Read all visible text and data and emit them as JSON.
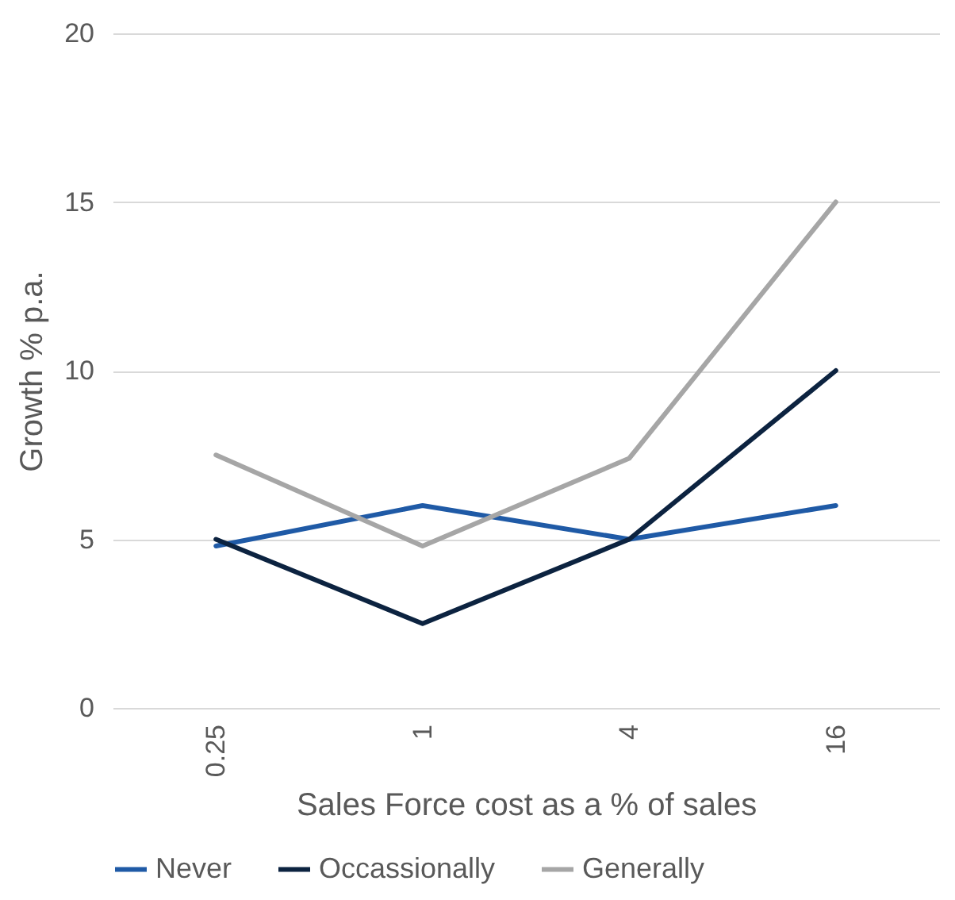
{
  "chart_data": {
    "type": "line",
    "xlabel": "Sales Force cost as a % of sales",
    "ylabel": "Growth % p.a.",
    "categories": [
      "0.25",
      "1",
      "4",
      "16"
    ],
    "series": [
      {
        "name": "Never",
        "color": "#1f5aa6",
        "values": [
          4.8,
          6.0,
          5.0,
          6.0
        ]
      },
      {
        "name": "Occassionally",
        "color": "#0c2340",
        "values": [
          5.0,
          2.5,
          5.0,
          10.0
        ]
      },
      {
        "name": "Generally",
        "color": "#a6a6a6",
        "values": [
          7.5,
          4.8,
          7.4,
          15.0
        ]
      }
    ],
    "ylim": [
      0,
      20
    ],
    "yticks": [
      0,
      5,
      10,
      15,
      20
    ],
    "grid": "y",
    "legend": "bottom",
    "marker": "none",
    "line_style": "solid"
  }
}
